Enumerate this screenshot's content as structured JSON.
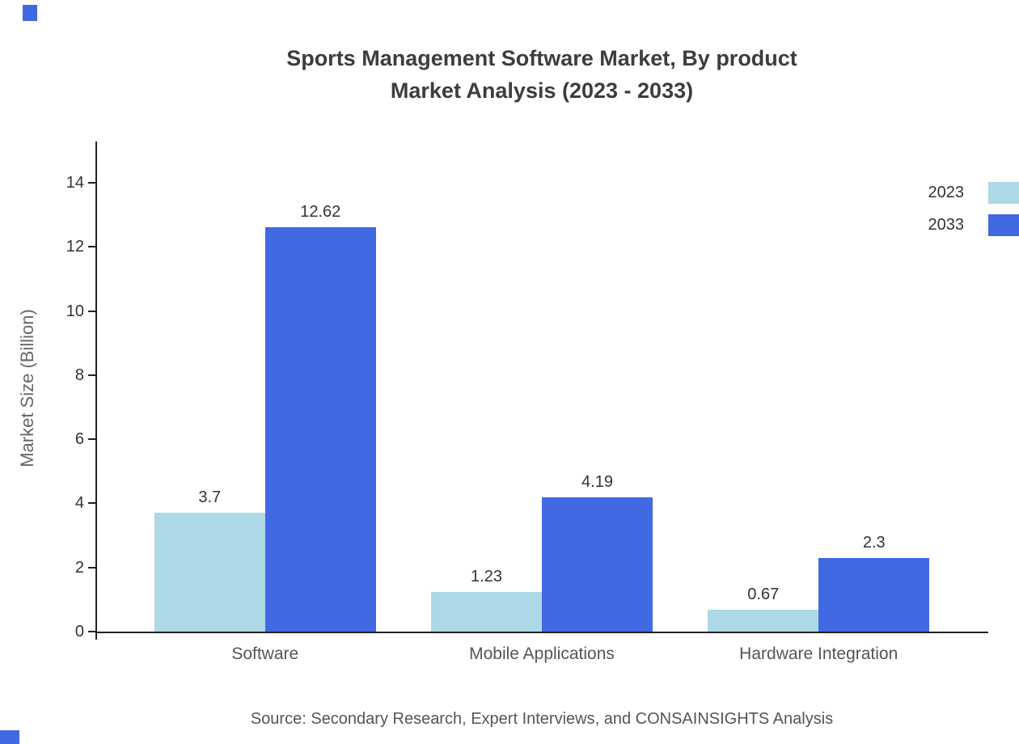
{
  "title_line1": "Sports Management Software Market, By product",
  "title_line2": "Market Analysis (2023 - 2033)",
  "source": "Source: Secondary Research, Expert Interviews, and CONSAINSIGHTS Analysis",
  "chart_data": {
    "type": "bar",
    "title": "Sports Management Software Market, By product Market Analysis (2023 - 2033)",
    "categories": [
      "Software",
      "Mobile Applications",
      "Hardware Integration"
    ],
    "series": [
      {
        "name": "2023",
        "color": "#add8e6",
        "values": [
          3.7,
          1.23,
          0.67
        ]
      },
      {
        "name": "2033",
        "color": "#4169e1",
        "values": [
          12.62,
          4.19,
          2.3
        ]
      }
    ],
    "xlabel": "",
    "ylabel": "Market Size (Billion)",
    "ylim": [
      0,
      14
    ],
    "yticks": [
      0,
      2,
      4,
      6,
      8,
      10,
      12,
      14
    ],
    "legend_position": "top-right",
    "grid": false
  }
}
